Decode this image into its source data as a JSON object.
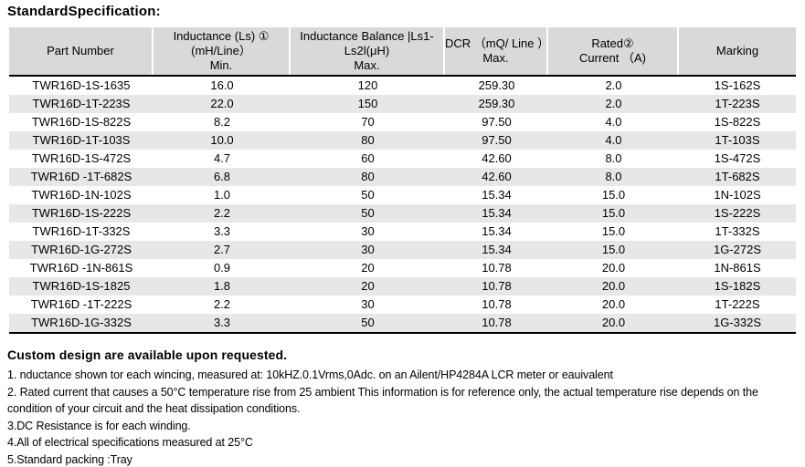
{
  "title": "StandardSpecification:",
  "colors": {
    "header_bg": "#d9d9d9",
    "alt_row_bg": "#e7e7e7",
    "border": "#000000",
    "text": "#000000"
  },
  "table": {
    "columns": [
      {
        "lines": [
          "Part Number"
        ]
      },
      {
        "lines": [
          "Inductance (Ls) ①",
          "(mH/Line）",
          "Min."
        ]
      },
      {
        "lines": [
          "Inductance Balance |Ls1-",
          "Ls2l(μH)",
          "Max."
        ]
      },
      {
        "lines": [
          "DCR （mQ/ Line ）",
          "Max."
        ]
      },
      {
        "lines": [
          "Rated②",
          "Current （A)"
        ]
      },
      {
        "lines": [
          "Marking"
        ]
      }
    ],
    "rows": [
      [
        "TWR16D-1S-1635",
        "16.0",
        "120",
        "259.30",
        "2.0",
        "1S-162S"
      ],
      [
        "TWR16D-1T-223S",
        "22.0",
        "150",
        "259.30",
        "2.0",
        "1T-223S"
      ],
      [
        "TWR16D-1S-822S",
        "8.2",
        "70",
        "97.50",
        "4.0",
        "1S-822S"
      ],
      [
        "TWR16D-1T-103S",
        "10.0",
        "80",
        "97.50",
        "4.0",
        "1T-103S"
      ],
      [
        "TWR16D-1S-472S",
        "4.7",
        "60",
        "42.60",
        "8.0",
        "1S-472S"
      ],
      [
        "TWR16D -1T-682S",
        "6.8",
        "80",
        "42.60",
        "8.0",
        "1T-682S"
      ],
      [
        "TWR16D-1N-102S",
        "1.0",
        "50",
        "15.34",
        "15.0",
        "1N-102S"
      ],
      [
        "TWR16D-1S-222S",
        "2.2",
        "50",
        "15.34",
        "15.0",
        "1S-222S"
      ],
      [
        "TWR16D-1T-332S",
        "3.3",
        "30",
        "15.34",
        "15.0",
        "1T-332S"
      ],
      [
        "TWR16D-1G-272S",
        "2.7",
        "30",
        "15.34",
        "15.0",
        "1G-272S"
      ],
      [
        "TWR16D -1N-861S",
        "0.9",
        "20",
        "10.78",
        "20.0",
        "1N-861S"
      ],
      [
        "TWR16D-1S-1825",
        "1.8",
        "20",
        "10.78",
        "20.0",
        "1S-182S"
      ],
      [
        "TWR16D -1T-222S",
        "2.2",
        "30",
        "10.78",
        "20.0",
        "1T-222S"
      ],
      [
        "TWR16D-1G-332S",
        "3.3",
        "50",
        "10.78",
        "20.0",
        "1G-332S"
      ]
    ]
  },
  "notes": {
    "heading": "Custom design are available upon requested.",
    "lines": [
      "1. nductance shown tor each wincing, measured at: 10kHZ.0.1Vrms,0Adc. on an Ailent/HP4284A LCR meter or eauivalent",
      "2. Rated current that causes a 50°C temperature rise from 25 ambient This information is for reference only, the actual temperature rise depends on the condition of your circuit and the heat dissipation conditions.",
      "3.DC Resistance is for each winding.",
      "4.All of electrical specifications measured at 25°C",
      "5.Standard packing :Tray"
    ]
  }
}
